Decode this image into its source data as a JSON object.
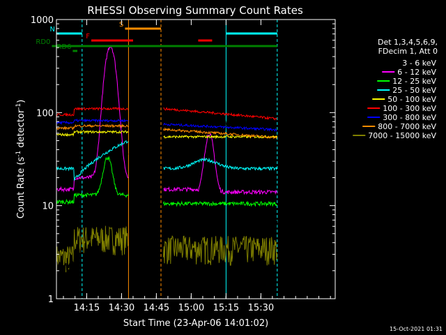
{
  "chart_data": {
    "type": "line",
    "title": "RHESSI Observing Summary Count Rates",
    "xlabel": "Start Time (23-Apr-06 14:01:02)",
    "ylabel_main": "Count Rate (s",
    "ylabel_sup1": "-1",
    "ylabel_mid": " detector",
    "ylabel_sup2": "-1",
    "ylabel_end": ")",
    "yscale": "log",
    "ylim": [
      1,
      1000
    ],
    "xlim_minutes": [
      14.033,
      16.033
    ],
    "x_ticks": [
      "14:15",
      "14:30",
      "14:45",
      "15:00",
      "15:15",
      "15:30"
    ],
    "x_tick_values": [
      14.25,
      14.5,
      14.75,
      15.0,
      15.25,
      15.5
    ],
    "y_ticks": [
      "1",
      "10",
      "100",
      "1000"
    ],
    "y_tick_values": [
      1,
      10,
      100,
      1000
    ],
    "legend_header": [
      "Det 1,3,4,5,6,9,",
      "FDecim 1, Att 0"
    ],
    "series": [
      {
        "name": "3 - 6 keV",
        "color": "#000000"
      },
      {
        "name": "6 - 12 keV",
        "color": "#ff00ff"
      },
      {
        "name": "12 - 25 keV",
        "color": "#00ff00"
      },
      {
        "name": "25 - 50 keV",
        "color": "#00ffff"
      },
      {
        "name": "50 - 100 keV",
        "color": "#ffff00"
      },
      {
        "name": "100 - 300 keV",
        "color": "#ff0000"
      },
      {
        "name": "300 - 800 keV",
        "color": "#0000ff"
      },
      {
        "name": "800 - 7000 keV",
        "color": "#ff8c00"
      },
      {
        "name": "7000 - 15000 keV",
        "color": "#808000"
      }
    ],
    "flag_bars": [
      {
        "label": "N",
        "color": "#00ffff",
        "start": 14.033,
        "end": 14.217
      },
      {
        "label": "",
        "color": "#00ffff",
        "start": 15.25,
        "end": 15.617
      },
      {
        "label": "S",
        "color": "#ff8c00",
        "start": 14.525,
        "end": 14.783
      },
      {
        "label": "F",
        "color": "#ff0000",
        "start": 14.283,
        "end": 14.583
      },
      {
        "label": "",
        "color": "#ff0000",
        "start": 15.05,
        "end": 15.15
      },
      {
        "label": "RD0",
        "color": "#008000",
        "start": 14.0,
        "end": 15.617
      },
      {
        "label": "RD6",
        "color": "#008000",
        "start": 14.15,
        "end": 14.183
      }
    ],
    "timestamp": "15-Oct-2021 01:31"
  }
}
